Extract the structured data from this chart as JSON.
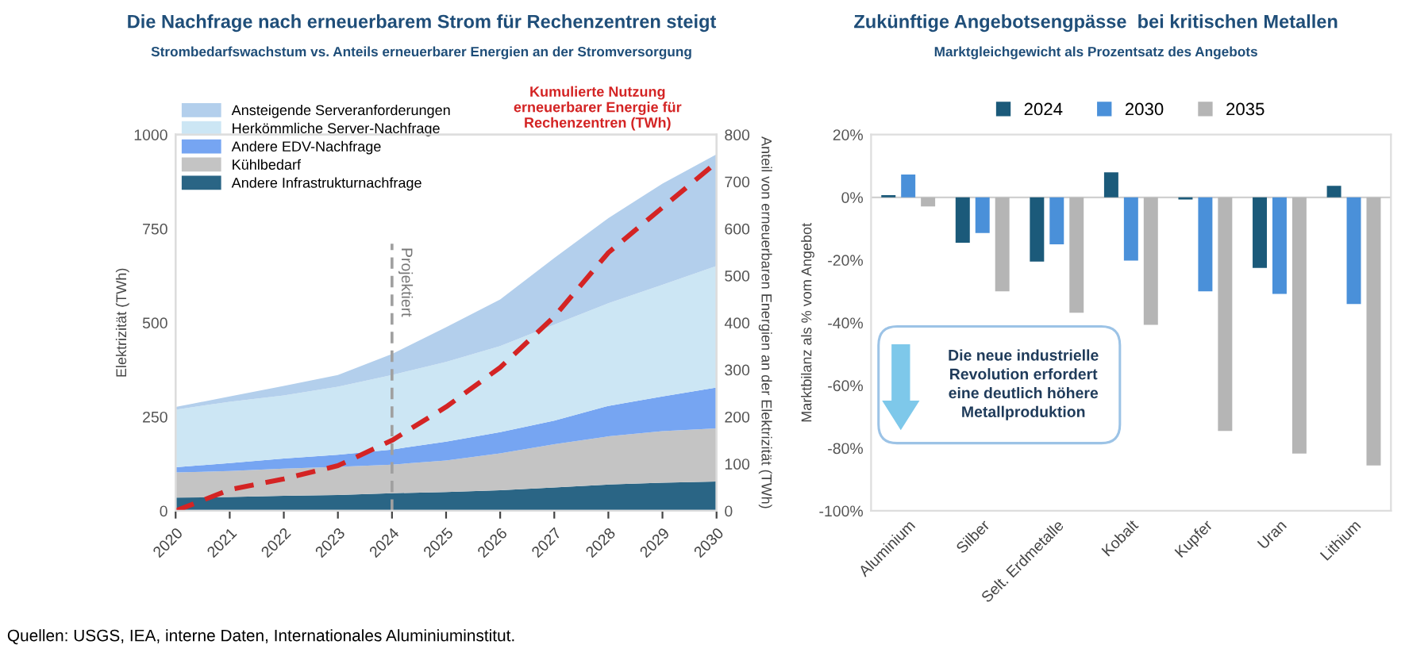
{
  "chart_data": [
    {
      "type": "area",
      "title": "Die Nachfrage nach erneuerbarem Strom für Rechenzentren steigt",
      "subtitle": "Strombedarfswachstum vs. Anteils erneuerbarer Energien an der Stromversorgung",
      "ylabel": "Elektrizität (TWh)",
      "y2label": "Anteil von erneuerbaren Energien an der Elektrizität (TWh)",
      "categories": [
        "2020",
        "2021",
        "2022",
        "2023",
        "2024",
        "2025",
        "2026",
        "2027",
        "2028",
        "2029",
        "2030"
      ],
      "stacked": true,
      "legend": "top left",
      "ylim": [
        0,
        1000
      ],
      "yticks": [
        0,
        250,
        500,
        750,
        1000
      ],
      "y2lim": [
        0,
        800
      ],
      "y2ticks": [
        0,
        100,
        200,
        300,
        400,
        500,
        600,
        700,
        800
      ],
      "series": [
        {
          "name": "Andere Infrastrukturnachfrage",
          "color": "#2a6585",
          "values": [
            35,
            37,
            40,
            42,
            47,
            50,
            55,
            62,
            70,
            75,
            78
          ]
        },
        {
          "name": "Kühlbedarf",
          "color": "#c4c4c4",
          "values": [
            67,
            69,
            72,
            75,
            76,
            84,
            98,
            115,
            128,
            137,
            141
          ]
        },
        {
          "name": "Andere EDV-Nachfrage",
          "color": "#76a5f2",
          "values": [
            14,
            21,
            27,
            32,
            40,
            50,
            56,
            63,
            81,
            92,
            109
          ]
        },
        {
          "name": "Herkömmliche Server-Nachfrage",
          "color": "#cce6f4",
          "values": [
            153,
            163,
            168,
            181,
            198,
            212,
            229,
            255,
            273,
            297,
            323
          ]
        },
        {
          "name": "Ansteigende Serveranforderungen",
          "color": "#b3cfec",
          "values": [
            7,
            14,
            25,
            31,
            56,
            92,
            124,
            177,
            226,
            269,
            297
          ]
        },
        {
          "name": "Kumulierte Nutzung erneuerbarer Energie für Rechenzentren (TWh)",
          "type": "line",
          "axis": "y2",
          "line_style": "dashed",
          "color": "#d42424",
          "values": [
            0,
            45,
            68,
            96,
            150,
            221,
            305,
            413,
            549,
            645,
            741
          ]
        }
      ],
      "ref_lines": [
        {
          "axis": "x",
          "value": "2024",
          "label": "Projektiert",
          "color": "#a0a0a0",
          "line_style": "dashed"
        }
      ],
      "annotations": [
        "Quellen: USGS, IEA, interne Daten, Internationales Aluminiuminstitut."
      ]
    },
    {
      "type": "bar",
      "title": "Zukünftige Angebotsengpässe  bei kritischen Metallen",
      "subtitle": "Marktgleichgewicht als Prozentsatz des Angebots",
      "ylabel": "Marktbilanz als % vom Angebot",
      "categories": [
        "Aluminium",
        "Silber",
        "Selt. Erdmetalle",
        "Kobalt",
        "Kupfer",
        "Uran",
        "Lithium"
      ],
      "legend": "top",
      "ylim": [
        -100,
        20
      ],
      "yticks": [
        {
          "value": -100,
          "label": "-100%"
        },
        {
          "value": -80,
          "label": "-80%"
        },
        {
          "value": -60,
          "label": "-60%"
        },
        {
          "value": -40,
          "label": "-40%"
        },
        {
          "value": -20,
          "label": "-20%"
        },
        {
          "value": 0,
          "label": "0%"
        },
        {
          "value": 20,
          "label": "20%"
        }
      ],
      "series": [
        {
          "name": "2024",
          "color": "#1b5a7a",
          "values": [
            0.7,
            -14.5,
            -20.5,
            8,
            -0.7,
            -22.5,
            3.7
          ]
        },
        {
          "name": "2030",
          "color": "#4a90d9",
          "values": [
            7.3,
            -11.4,
            -15,
            -20.2,
            -30,
            -30.8,
            -34
          ]
        },
        {
          "name": "2035",
          "color": "#b5b5b5",
          "values": [
            -2.9,
            -30,
            -36.8,
            -40.7,
            -74.5,
            -81.7,
            -85.5
          ]
        }
      ],
      "annotations": [
        "Die neue industrielle Revolution erfordert eine deutlich höhere Metallproduktion"
      ]
    }
  ]
}
